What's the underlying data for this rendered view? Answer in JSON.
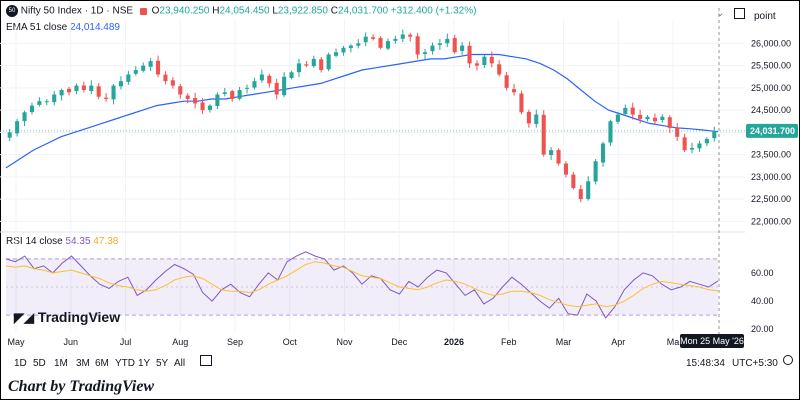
{
  "header": {
    "symbol": "Nifty 50 Index · 1D · NSE",
    "ohlc": {
      "o_label": "O",
      "o": "23,940.250",
      "h_label": "H",
      "h": "24,054.450",
      "l_label": "L",
      "l": "23,922.850",
      "c_label": "C",
      "c": "24,031.700",
      "change": "+312.400 (+1.32%)"
    },
    "ema_label": "EMA 51 close",
    "ema_value": "24,014.489",
    "right_label": "point",
    "badge_text": "50"
  },
  "rsi": {
    "label": "RSI 14 close",
    "value": "54.35",
    "ma_value": "47.38"
  },
  "crosshair_date": "Mon 25 May '26",
  "brand": "TradingView",
  "time_display": "15:48:34",
  "tz": "UTC+5:30",
  "toolbar": {
    "ranges": [
      "1D",
      "5D",
      "1M",
      "3M",
      "6M",
      "YTD",
      "1Y",
      "5Y",
      "All"
    ]
  },
  "footer": "Chart by TradingView",
  "colors": {
    "up": "#26a69a",
    "down": "#ef5350",
    "ema": "#2962ff",
    "rsi": "#7e57c2",
    "rsi_ma": "#fbc02d"
  },
  "chart_data": [
    {
      "type": "candlestick",
      "x_ticks": [
        "May",
        "Jun",
        "Jul",
        "Aug",
        "Sep",
        "Oct",
        "Nov",
        "Dec",
        "2026",
        "Feb",
        "Mar",
        "Apr",
        "Ma"
      ],
      "y_ticks": [
        "26,000.00",
        "25,500.00",
        "25,000.00",
        "24,500.00",
        "24,000.00",
        "23,500.00",
        "23,000.00",
        "22,500.00",
        "22,000.00"
      ],
      "ylim": [
        21850,
        26300
      ],
      "last_price_label": "24,031.700",
      "last_price": 24031.7,
      "close": [
        24000,
        24250,
        24450,
        24600,
        24700,
        24700,
        24850,
        24950,
        24900,
        25050,
        24950,
        25050,
        24800,
        24750,
        25050,
        25150,
        25300,
        25400,
        25500,
        25600,
        25300,
        25150,
        25050,
        24850,
        24750,
        24650,
        24500,
        24600,
        24850,
        24900,
        24750,
        24950,
        25000,
        25150,
        25300,
        25100,
        24850,
        25250,
        25350,
        25550,
        25500,
        25650,
        25400,
        25750,
        25800,
        25900,
        25950,
        26000,
        26150,
        26100,
        25900,
        26050,
        26100,
        26200,
        26150,
        25750,
        25800,
        25950,
        26000,
        26100,
        25800,
        25950,
        25550,
        25500,
        25700,
        25550,
        25300,
        25000,
        24900,
        24450,
        24200,
        24400,
        23500,
        23600,
        23300,
        23050,
        22750,
        22500,
        22900,
        23350,
        23750,
        24250,
        24400,
        24550,
        24400,
        24300,
        24350,
        24250,
        24350,
        24100,
        23900,
        23600,
        23650,
        23750,
        23850,
        24031.7
      ],
      "ema": [
        23200,
        23400,
        23600,
        23750,
        23900,
        24000,
        24100,
        24200,
        24300,
        24400,
        24500,
        24600,
        24650,
        24700,
        24700,
        24750,
        24750,
        24800,
        24850,
        24900,
        24950,
        25000,
        25050,
        25100,
        25200,
        25300,
        25400,
        25450,
        25500,
        25550,
        25600,
        25650,
        25650,
        25700,
        25750,
        25750,
        25750,
        25700,
        25650,
        25550,
        25400,
        25200,
        24950,
        24700,
        24500,
        24400,
        24300,
        24200,
        24150,
        24100,
        24080,
        24050,
        24014.5
      ],
      "rsi": [
        70,
        68,
        72,
        63,
        65,
        60,
        67,
        72,
        65,
        58,
        52,
        49,
        54,
        57,
        44,
        48,
        55,
        61,
        66,
        63,
        59,
        46,
        40,
        48,
        52,
        46,
        43,
        52,
        60,
        55,
        68,
        72,
        75,
        72,
        70,
        62,
        65,
        60,
        52,
        58,
        56,
        48,
        45,
        54,
        50,
        57,
        62,
        60,
        52,
        44,
        48,
        38,
        42,
        50,
        57,
        52,
        46,
        40,
        35,
        42,
        31,
        30,
        45,
        40,
        28,
        36,
        48,
        55,
        60,
        58,
        52,
        48,
        50,
        54,
        52,
        50,
        54.35
      ],
      "rsi_ma": [
        65,
        64,
        65,
        63,
        62,
        60,
        61,
        62,
        60,
        58,
        56,
        53,
        51,
        50,
        48,
        47,
        48,
        51,
        55,
        57,
        58,
        56,
        52,
        48,
        47,
        47,
        46,
        48,
        52,
        55,
        58,
        62,
        66,
        68,
        67,
        65,
        64,
        61,
        58,
        57,
        56,
        53,
        50,
        49,
        48,
        50,
        53,
        55,
        54,
        52,
        49,
        46,
        44,
        45,
        47,
        47,
        46,
        44,
        41,
        39,
        37,
        36,
        37,
        38,
        36,
        37,
        40,
        44,
        49,
        52,
        54,
        53,
        52,
        51,
        50,
        48,
        47.38
      ],
      "rsi_ticks": [
        "60.00",
        "40.00",
        "20.00"
      ],
      "rsi_ylim": [
        18,
        82
      ],
      "rsi_band": [
        30,
        70
      ]
    }
  ]
}
